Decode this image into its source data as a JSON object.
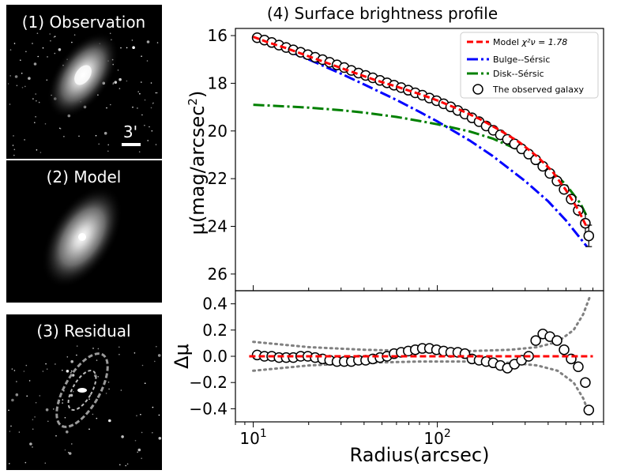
{
  "panels": {
    "observation": {
      "title": "(1) Observation",
      "scale_label": "3'"
    },
    "model": {
      "title": "(2) Model"
    },
    "residual": {
      "title": "(3) Residual"
    }
  },
  "colors": {
    "model": "#ff0000",
    "bulge": "#0000ff",
    "disk": "#008000",
    "observed": "#000000",
    "error_band": "#808080"
  },
  "chart_data": [
    {
      "type": "line",
      "title": "(4) Surface brightness profile",
      "ylabel_main": "μ(mag/arcsec",
      "ylabel_sup": "2",
      "ylabel_close": ")",
      "xscale": "log",
      "xlim": [
        8,
        800
      ],
      "ylim": [
        26.7,
        15.7
      ],
      "yticks": [
        16,
        18,
        20,
        22,
        24,
        26
      ],
      "ytick_labels": [
        "16",
        "18",
        "20",
        "22",
        "24",
        "26"
      ],
      "legend": {
        "placement": "top-right",
        "entries": [
          {
            "key": "model",
            "label": "Model ",
            "math": "χ²ν = 1.78"
          },
          {
            "key": "bulge",
            "label": "Bulge--Sérsic"
          },
          {
            "key": "disk",
            "label": "Disk--Sérsic"
          },
          {
            "key": "observed",
            "label": "The observed galaxy"
          }
        ]
      },
      "observed": {
        "name": "The observed galaxy",
        "x": [
          10.5,
          11.5,
          12.6,
          13.8,
          15.1,
          16.5,
          18.1,
          19.8,
          21.7,
          23.8,
          26.0,
          28.5,
          31.2,
          34.1,
          37.3,
          40.8,
          44.6,
          48.8,
          53.3,
          58.2,
          63.6,
          69.5,
          75.9,
          82.9,
          90.6,
          99.0,
          108.2,
          118.2,
          129.2,
          141.2,
          154.3,
          168.6,
          184.2,
          201.3,
          220.0,
          240.3,
          262.6,
          286.9,
          313.5,
          342.5,
          374.2,
          408.9,
          446.8,
          488.2,
          533.5,
          583.0,
          637.0
        ],
        "y": [
          16.09,
          16.19,
          16.29,
          16.4,
          16.5,
          16.6,
          16.7,
          16.8,
          16.91,
          17.01,
          17.12,
          17.23,
          17.34,
          17.46,
          17.57,
          17.67,
          17.77,
          17.88,
          17.98,
          18.08,
          18.18,
          18.29,
          18.4,
          18.5,
          18.62,
          18.73,
          18.86,
          18.99,
          19.14,
          19.29,
          19.45,
          19.61,
          19.79,
          19.97,
          20.16,
          20.35,
          20.54,
          20.75,
          20.97,
          21.21,
          21.48,
          21.78,
          22.1,
          22.45,
          22.86,
          23.33,
          23.87
        ],
        "errors": [
          0,
          0,
          0,
          0,
          0,
          0,
          0,
          0,
          0,
          0,
          0,
          0,
          0,
          0,
          0,
          0,
          0,
          0,
          0,
          0,
          0,
          0,
          0,
          0,
          0,
          0,
          0,
          0,
          0,
          0,
          0,
          0,
          0,
          0,
          0,
          0,
          0,
          0,
          0,
          0,
          0,
          0,
          0,
          0.1,
          0.15,
          0.25,
          0.45
        ],
        "last_point": {
          "x": 665,
          "y": 24.4,
          "error": 0.45
        }
      },
      "model_curve": {
        "name": "Model",
        "x": [
          10.0,
          12.0,
          15.0,
          20.0,
          30.0,
          45.0,
          60.0,
          80.0,
          100.0,
          130.0,
          170.0,
          220.0,
          280.0,
          350.0,
          420.0,
          500.0,
          580.0,
          650.0
        ],
        "y": [
          16.05,
          16.28,
          16.52,
          16.87,
          17.36,
          17.84,
          18.14,
          18.45,
          18.72,
          19.08,
          19.5,
          19.98,
          20.48,
          21.08,
          21.68,
          22.48,
          23.28,
          24.05
        ]
      },
      "bulge_curve": {
        "name": "Bulge--Sérsic",
        "x": [
          10.0,
          15.0,
          20.0,
          30.0,
          40.0,
          60.0,
          80.0,
          100.0,
          150.0,
          200.0,
          300.0,
          400.0,
          500.0,
          650.0
        ],
        "y": [
          16.1,
          16.6,
          17.0,
          17.6,
          18.05,
          18.7,
          19.2,
          19.6,
          20.4,
          21.05,
          22.1,
          22.95,
          23.75,
          24.85
        ]
      },
      "disk_curve": {
        "name": "Disk--Sérsic",
        "x": [
          10.0,
          20.0,
          30.0,
          40.0,
          60.0,
          80.0,
          100.0,
          150.0,
          200.0,
          300.0,
          400.0,
          500.0,
          600.0,
          650.0
        ],
        "y": [
          18.9,
          19.02,
          19.13,
          19.23,
          19.41,
          19.58,
          19.72,
          20.02,
          20.32,
          20.92,
          21.55,
          22.25,
          23.05,
          23.6
        ]
      }
    },
    {
      "type": "line",
      "title": "",
      "xlabel": "Radius(arcsec)",
      "ylabel": "Δμ",
      "xscale": "log",
      "xlim": [
        8,
        800
      ],
      "ylim": [
        -0.5,
        0.5
      ],
      "yticks": [
        0.4,
        0.2,
        0.0,
        -0.2,
        -0.4
      ],
      "ytick_labels": [
        "0.4",
        "0.2",
        "0.0",
        "−0.2",
        "−0.4"
      ],
      "xticks": [
        10,
        100
      ],
      "xtick_base": "10",
      "xtick_exps": [
        "1",
        "2"
      ],
      "residual": {
        "x": [
          10.5,
          11.5,
          12.6,
          13.8,
          15.1,
          16.5,
          18.1,
          19.8,
          21.7,
          23.8,
          26.0,
          28.5,
          31.2,
          34.1,
          37.3,
          40.8,
          44.6,
          48.8,
          53.3,
          58.2,
          63.6,
          69.5,
          75.9,
          82.9,
          90.6,
          99.0,
          108.2,
          118.2,
          129.2,
          141.2,
          154.3,
          168.6,
          184.2,
          201.3,
          220.0,
          240.3,
          262.6,
          286.9,
          313.5,
          342.5,
          374.2,
          408.9,
          446.8,
          488.2,
          533.5,
          583.0,
          637.0
        ],
        "y": [
          0.01,
          0.0,
          0.0,
          -0.01,
          -0.01,
          -0.01,
          0.0,
          0.0,
          -0.01,
          -0.02,
          -0.03,
          -0.04,
          -0.04,
          -0.04,
          -0.03,
          -0.03,
          -0.02,
          -0.01,
          0.0,
          0.02,
          0.03,
          0.04,
          0.05,
          0.06,
          0.06,
          0.05,
          0.04,
          0.03,
          0.03,
          0.02,
          -0.02,
          -0.03,
          -0.04,
          -0.05,
          -0.07,
          -0.09,
          -0.06,
          -0.03,
          0.0,
          0.12,
          0.17,
          0.15,
          0.12,
          0.05,
          -0.02,
          -0.08,
          -0.2
        ]
      },
      "last_residual": {
        "x": 665,
        "y": -0.41
      },
      "zero_line": {
        "x": [
          9.5,
          700
        ],
        "y": [
          0,
          0
        ]
      },
      "error_band": {
        "x": [
          10.0,
          20.0,
          40.0,
          80.0,
          150.0,
          250.0,
          350.0,
          450.0,
          550.0,
          620.0,
          680.0
        ],
        "upper": [
          0.11,
          0.07,
          0.05,
          0.04,
          0.04,
          0.05,
          0.07,
          0.11,
          0.2,
          0.32,
          0.47
        ],
        "lower": [
          -0.11,
          -0.07,
          -0.05,
          -0.04,
          -0.04,
          -0.05,
          -0.07,
          -0.11,
          -0.2,
          -0.32,
          -0.47
        ]
      }
    }
  ]
}
